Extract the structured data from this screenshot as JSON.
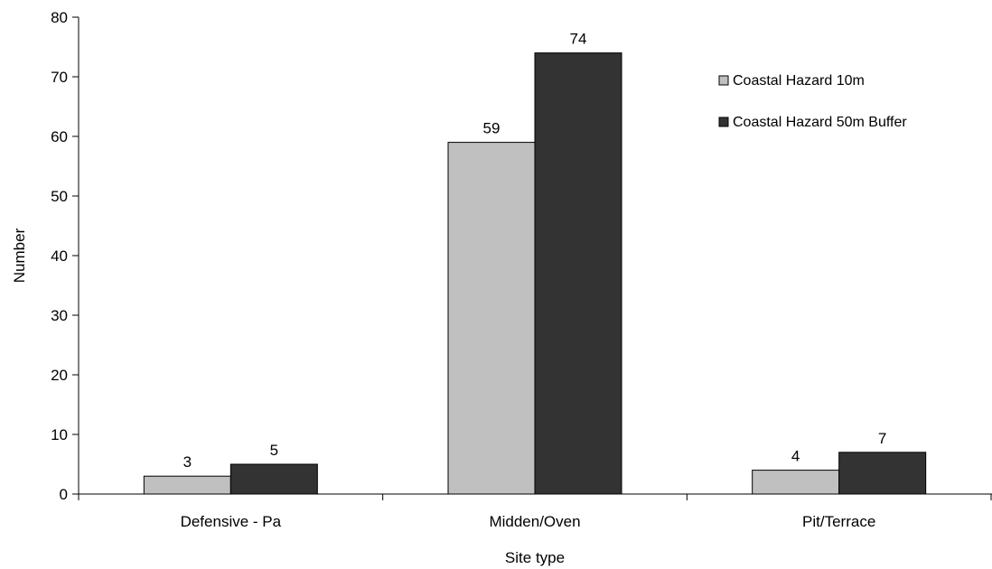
{
  "chart_data": {
    "type": "bar",
    "title": "",
    "xlabel": "Site type",
    "ylabel": "Number",
    "ylim": [
      0,
      80
    ],
    "yticks": [
      0,
      10,
      20,
      30,
      40,
      50,
      60,
      70,
      80
    ],
    "categories": [
      "Defensive - Pa",
      "Midden/Oven",
      "Pit/Terrace"
    ],
    "series": [
      {
        "name": "Coastal Hazard 10m",
        "values": [
          3,
          59,
          4
        ],
        "color": "#c0c0c0"
      },
      {
        "name": "Coastal Hazard 50m Buffer",
        "values": [
          5,
          74,
          7
        ],
        "color": "#333333"
      }
    ],
    "grid": false,
    "legend": "top-right",
    "data_labels": true
  }
}
